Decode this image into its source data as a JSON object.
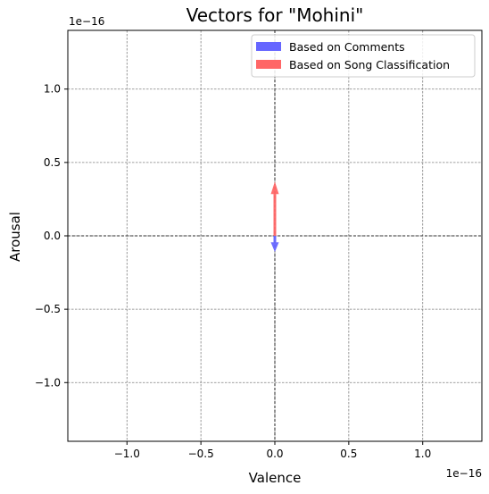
{
  "chart_data": {
    "type": "quiver",
    "title": "Vectors for \"Mohini\"",
    "xlabel": "Valence",
    "ylabel": "Arousal",
    "x_offset_label": "1e−16",
    "y_offset_label": "1e−16",
    "xlim": [
      -1.4,
      1.4
    ],
    "ylim": [
      -1.4,
      1.4
    ],
    "scale_exponent": -16,
    "x_ticks": [
      -1.0,
      -0.5,
      0.0,
      0.5,
      1.0
    ],
    "x_tick_labels": [
      "−1.0",
      "−0.5",
      "0.0",
      "0.5",
      "1.0"
    ],
    "y_ticks": [
      -1.0,
      -0.5,
      0.0,
      0.5,
      1.0
    ],
    "y_tick_labels": [
      "−1.0",
      "−0.5",
      "0.0",
      "0.5",
      "1.0"
    ],
    "grid": true,
    "legend_position": "upper right",
    "series": [
      {
        "name": "Based on Comments",
        "color": "#6666ff",
        "x0": 0.0,
        "y0": 0.0,
        "dx": 0.0,
        "dy": -0.11
      },
      {
        "name": "Based on Song Classification",
        "color": "#ff6666",
        "x0": 0.0,
        "y0": 0.0,
        "dx": 0.0,
        "dy": 0.37
      }
    ]
  }
}
